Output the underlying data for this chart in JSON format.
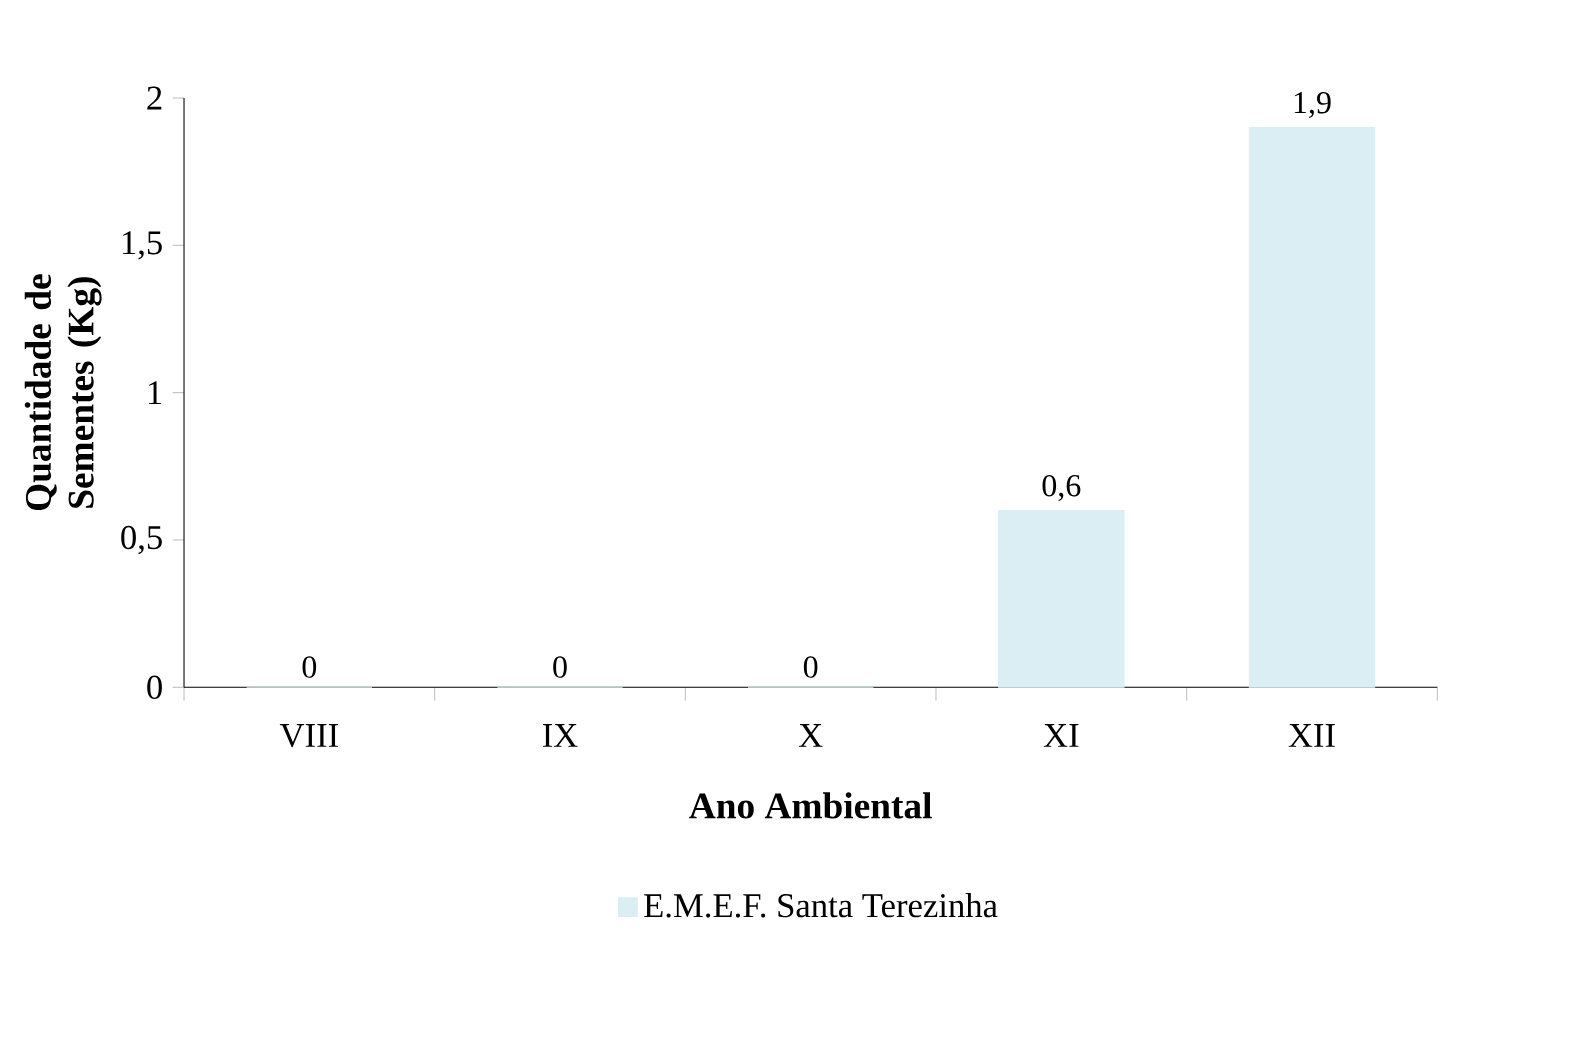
{
  "chart_data": {
    "type": "bar",
    "categories": [
      "VIII",
      "IX",
      "X",
      "XI",
      "XII"
    ],
    "series": [
      {
        "name": "E.M.E.F. Santa Terezinha",
        "color": "#daeef3",
        "values": [
          0,
          0,
          0,
          0.6,
          1.9
        ],
        "value_labels": [
          "0",
          "0",
          "0",
          "0,6",
          "1,9"
        ]
      }
    ],
    "xlabel": "Ano Ambiental",
    "ylabel": "Quantidade de Sementes (Kg)",
    "ylim": [
      0,
      2
    ],
    "yticks": [
      0,
      {
        "value": 0.5,
        "label": "0,5"
      },
      1,
      {
        "value": 1.5,
        "label": "1,5"
      },
      2
    ],
    "grid": false,
    "legend": "bottom"
  }
}
